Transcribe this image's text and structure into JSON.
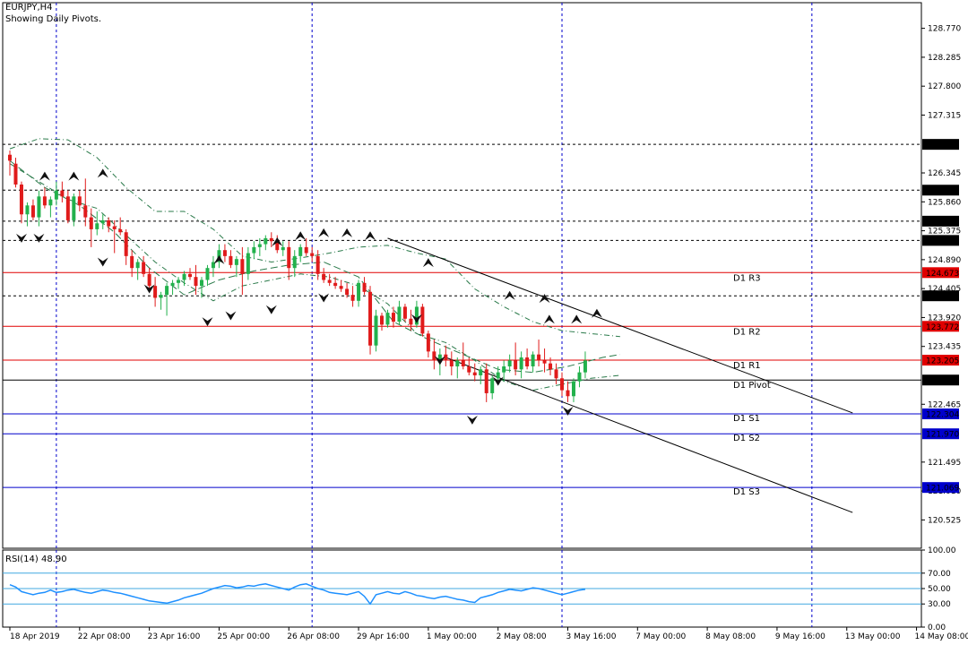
{
  "header": {
    "symbol": "EURJPY,H4",
    "subtitle": "Showing Daily Pivots."
  },
  "chart_data": {
    "type": "candlestick",
    "symbol": "EURJPY",
    "timeframe": "H4",
    "ylim": [
      120.05,
      129.2
    ],
    "grid": false,
    "y_ticks": [
      "128.770",
      "128.285",
      "127.800",
      "127.315",
      "126.345",
      "125.860",
      "125.375",
      "124.890",
      "124.405",
      "123.920",
      "123.435",
      "122.465",
      "121.495",
      "121.010",
      "120.525"
    ],
    "x_ticks": [
      "18 Apr 2019",
      "22 Apr 08:00",
      "23 Apr 16:00",
      "25 Apr 00:00",
      "26 Apr 08:00",
      "29 Apr 16:00",
      "1 May 00:00",
      "2 May 08:00",
      "3 May 16:00",
      "7 May 00:00",
      "8 May 08:00",
      "9 May 16:00",
      "13 May 00:00",
      "14 May 08:00"
    ],
    "session_separators": [
      "22 Apr 00:00",
      "29 Apr 00:00",
      "6 May 00:00",
      "13 May 00:00"
    ],
    "pivot_levels": [
      {
        "name": "D1 R3",
        "price": "124.673",
        "color": "#e00000",
        "label_bg": "#e00000"
      },
      {
        "name": "D1 R2",
        "price": "123.772",
        "color": "#e00000",
        "label_bg": "#e00000"
      },
      {
        "name": "D1 R1",
        "price": "123.205",
        "color": "#e00000",
        "label_bg": "#e00000"
      },
      {
        "name": "D1 Pivot",
        "price": "122.871",
        "color": "#000000",
        "label_bg": "#000000"
      },
      {
        "name": "D1 S1",
        "price": "122.304",
        "color": "#0000cc",
        "label_bg": "#0000cc"
      },
      {
        "name": "D1 S2",
        "price": "121.970",
        "color": "#0000cc",
        "label_bg": "#0000cc"
      },
      {
        "name": "D1 S3",
        "price": "121.069",
        "color": "#0000cc",
        "label_bg": "#0000cc"
      }
    ],
    "horizontal_levels": [
      "126.824",
      "126.056",
      "125.536",
      "125.213",
      "124.284"
    ],
    "channel_lines": [
      {
        "from": [
          65,
          125.25
        ],
        "to": [
          145,
          122.32
        ]
      },
      {
        "from": [
          75,
          123.25
        ],
        "to": [
          145,
          120.65
        ]
      }
    ],
    "candles": [
      [
        0,
        126.65,
        126.72,
        126.3,
        126.55
      ],
      [
        1,
        126.5,
        126.6,
        126.1,
        126.15
      ],
      [
        2,
        126.15,
        126.2,
        125.5,
        125.65
      ],
      [
        3,
        125.65,
        125.85,
        125.45,
        125.8
      ],
      [
        4,
        125.8,
        125.9,
        125.55,
        125.6
      ],
      [
        5,
        125.6,
        126.05,
        125.45,
        125.95
      ],
      [
        6,
        125.95,
        126.1,
        125.75,
        125.8
      ],
      [
        7,
        125.8,
        125.95,
        125.6,
        125.9
      ],
      [
        8,
        125.9,
        126.2,
        125.8,
        126.05
      ],
      [
        9,
        126.05,
        126.2,
        125.85,
        125.95
      ],
      [
        10,
        125.95,
        126.05,
        125.5,
        125.55
      ],
      [
        11,
        125.55,
        126.0,
        125.45,
        125.95
      ],
      [
        12,
        125.95,
        126.05,
        125.7,
        125.8
      ],
      [
        13,
        125.8,
        126.25,
        125.45,
        125.6
      ],
      [
        14,
        125.6,
        125.75,
        125.1,
        125.4
      ],
      [
        15,
        125.4,
        125.7,
        125.3,
        125.5
      ],
      [
        16,
        125.5,
        125.65,
        125.4,
        125.55
      ],
      [
        17,
        125.55,
        125.6,
        125.35,
        125.45
      ],
      [
        18,
        125.45,
        125.55,
        125.0,
        125.4
      ],
      [
        19,
        125.4,
        125.6,
        125.3,
        125.35
      ],
      [
        20,
        125.35,
        125.4,
        124.8,
        124.95
      ],
      [
        21,
        124.95,
        125.05,
        124.6,
        124.75
      ],
      [
        22,
        124.75,
        124.9,
        124.55,
        124.85
      ],
      [
        23,
        124.85,
        124.95,
        124.6,
        124.65
      ],
      [
        24,
        124.65,
        124.75,
        124.35,
        124.45
      ],
      [
        25,
        124.45,
        124.6,
        124.1,
        124.25
      ],
      [
        26,
        124.25,
        124.35,
        124.05,
        124.3
      ],
      [
        27,
        124.3,
        124.5,
        123.95,
        124.45
      ],
      [
        28,
        124.45,
        124.55,
        124.3,
        124.5
      ],
      [
        29,
        124.5,
        124.6,
        124.4,
        124.55
      ],
      [
        30,
        124.55,
        124.7,
        124.45,
        124.65
      ],
      [
        31,
        124.65,
        124.75,
        124.55,
        124.6
      ],
      [
        32,
        124.6,
        124.8,
        124.3,
        124.45
      ],
      [
        33,
        124.45,
        124.6,
        124.25,
        124.55
      ],
      [
        34,
        124.55,
        124.8,
        124.45,
        124.75
      ],
      [
        35,
        124.75,
        124.95,
        124.6,
        124.85
      ],
      [
        36,
        124.85,
        125.15,
        124.75,
        125.05
      ],
      [
        37,
        125.05,
        125.15,
        124.85,
        124.95
      ],
      [
        38,
        124.95,
        125.05,
        124.75,
        124.8
      ],
      [
        39,
        124.8,
        124.95,
        124.6,
        124.9
      ],
      [
        40,
        124.9,
        125.1,
        124.3,
        124.65
      ],
      [
        41,
        124.65,
        125.1,
        124.55,
        125.0
      ],
      [
        42,
        125.0,
        125.2,
        124.9,
        125.1
      ],
      [
        43,
        125.1,
        125.25,
        124.95,
        125.15
      ],
      [
        44,
        125.15,
        125.3,
        125.05,
        125.25
      ],
      [
        45,
        125.25,
        125.35,
        125.1,
        125.2
      ],
      [
        46,
        125.2,
        125.3,
        125.0,
        125.05
      ],
      [
        47,
        125.05,
        125.2,
        124.95,
        125.1
      ],
      [
        48,
        125.1,
        125.2,
        124.55,
        124.75
      ],
      [
        49,
        124.75,
        125.05,
        124.6,
        124.95
      ],
      [
        50,
        124.95,
        125.15,
        124.85,
        125.1
      ],
      [
        51,
        125.1,
        125.25,
        124.95,
        125.0
      ],
      [
        52,
        125.0,
        125.1,
        124.85,
        124.95
      ],
      [
        53,
        124.95,
        125.05,
        124.55,
        124.65
      ],
      [
        54,
        124.65,
        124.75,
        124.5,
        124.55
      ],
      [
        55,
        124.55,
        124.65,
        124.45,
        124.5
      ],
      [
        56,
        124.5,
        124.6,
        124.4,
        124.45
      ],
      [
        57,
        124.45,
        124.55,
        124.35,
        124.4
      ],
      [
        58,
        124.4,
        124.5,
        124.25,
        124.3
      ],
      [
        59,
        124.3,
        124.45,
        124.1,
        124.2
      ],
      [
        60,
        124.2,
        124.55,
        124.1,
        124.5
      ],
      [
        61,
        124.5,
        124.6,
        124.3,
        124.35
      ],
      [
        62,
        124.35,
        124.45,
        123.3,
        123.45
      ],
      [
        63,
        123.45,
        124.05,
        123.35,
        123.95
      ],
      [
        64,
        123.95,
        124.0,
        123.7,
        123.8
      ],
      [
        65,
        123.8,
        124.05,
        123.75,
        124.0
      ],
      [
        66,
        124.0,
        124.1,
        123.75,
        123.85
      ],
      [
        67,
        123.85,
        124.2,
        123.8,
        124.1
      ],
      [
        68,
        124.1,
        124.15,
        123.85,
        123.9
      ],
      [
        69,
        123.9,
        124.05,
        123.7,
        123.8
      ],
      [
        70,
        123.8,
        124.2,
        123.75,
        124.1
      ],
      [
        71,
        124.1,
        124.15,
        123.6,
        123.65
      ],
      [
        72,
        123.65,
        123.7,
        123.25,
        123.35
      ],
      [
        73,
        123.35,
        123.55,
        123.05,
        123.2
      ],
      [
        74,
        123.2,
        123.4,
        122.95,
        123.3
      ],
      [
        75,
        123.3,
        123.45,
        123.1,
        123.2
      ],
      [
        76,
        123.2,
        123.35,
        122.95,
        123.1
      ],
      [
        77,
        123.1,
        123.25,
        122.9,
        123.2
      ],
      [
        78,
        123.2,
        123.5,
        123.05,
        123.1
      ],
      [
        79,
        123.1,
        123.25,
        122.95,
        123.0
      ],
      [
        80,
        123.0,
        123.15,
        122.85,
        122.95
      ],
      [
        81,
        122.95,
        123.1,
        122.8,
        123.05
      ],
      [
        82,
        123.05,
        123.15,
        122.5,
        122.65
      ],
      [
        83,
        122.65,
        122.95,
        122.55,
        122.9
      ],
      [
        84,
        122.9,
        123.1,
        122.8,
        123.0
      ],
      [
        85,
        123.0,
        123.2,
        122.85,
        123.1
      ],
      [
        86,
        123.1,
        123.3,
        123.0,
        123.2
      ],
      [
        87,
        123.2,
        123.5,
        122.95,
        123.05
      ],
      [
        88,
        123.05,
        123.35,
        122.9,
        123.25
      ],
      [
        89,
        123.25,
        123.4,
        123.05,
        123.1
      ],
      [
        90,
        123.1,
        123.35,
        123.0,
        123.3
      ],
      [
        91,
        123.3,
        123.55,
        123.1,
        123.2
      ],
      [
        92,
        123.2,
        123.4,
        123.0,
        123.15
      ],
      [
        93,
        123.15,
        123.25,
        122.95,
        123.05
      ],
      [
        94,
        123.05,
        123.15,
        122.8,
        122.9
      ],
      [
        95,
        122.9,
        123.0,
        122.6,
        122.7
      ],
      [
        96,
        122.7,
        122.85,
        122.5,
        122.6
      ],
      [
        97,
        122.6,
        122.9,
        122.5,
        122.85
      ],
      [
        98,
        122.85,
        123.1,
        122.75,
        123.0
      ],
      [
        99,
        123.0,
        123.35,
        122.9,
        123.2
      ]
    ],
    "fractals_up": [
      [
        6,
        126.2
      ],
      [
        11,
        126.2
      ],
      [
        16,
        126.25
      ],
      [
        36,
        124.8
      ],
      [
        46,
        125.1
      ],
      [
        50,
        125.2
      ],
      [
        54,
        125.25
      ],
      [
        58,
        125.25
      ],
      [
        62,
        125.2
      ],
      [
        72,
        124.75
      ],
      [
        86,
        124.2
      ],
      [
        92,
        124.15
      ],
      [
        101,
        123.9
      ],
      [
        119,
        123.8
      ],
      [
        125,
        123.8
      ]
    ],
    "fractals_down": [
      [
        2,
        125.4
      ],
      [
        5,
        125.4
      ],
      [
        16,
        125.0
      ],
      [
        24,
        124.55
      ],
      [
        34,
        124.0
      ],
      [
        38,
        124.1
      ],
      [
        45,
        124.2
      ],
      [
        54,
        124.4
      ],
      [
        70,
        124.05
      ],
      [
        74,
        123.35
      ],
      [
        84,
        123.0
      ],
      [
        96,
        122.5
      ],
      [
        102,
        122.35
      ]
    ],
    "envelope_upper": [
      [
        0,
        126.75
      ],
      [
        5,
        126.92
      ],
      [
        10,
        126.9
      ],
      [
        15,
        126.6
      ],
      [
        20,
        126.1
      ],
      [
        25,
        125.7
      ],
      [
        30,
        125.7
      ],
      [
        35,
        125.4
      ],
      [
        40,
        124.95
      ],
      [
        45,
        124.85
      ],
      [
        50,
        124.92
      ],
      [
        55,
        125.0
      ],
      [
        60,
        125.1
      ],
      [
        65,
        125.13
      ],
      [
        70,
        125.0
      ],
      [
        75,
        124.9
      ],
      [
        80,
        124.4
      ],
      [
        85,
        124.1
      ],
      [
        90,
        123.85
      ],
      [
        95,
        123.7
      ],
      [
        100,
        123.65
      ],
      [
        105,
        123.6
      ]
    ],
    "envelope_lower": [
      [
        0,
        126.5
      ],
      [
        5,
        126.2
      ],
      [
        10,
        125.9
      ],
      [
        15,
        125.75
      ],
      [
        20,
        125.3
      ],
      [
        25,
        124.85
      ],
      [
        30,
        124.5
      ],
      [
        35,
        124.2
      ],
      [
        40,
        124.45
      ],
      [
        45,
        124.55
      ],
      [
        50,
        124.65
      ],
      [
        55,
        124.6
      ],
      [
        60,
        124.45
      ],
      [
        65,
        124.15
      ],
      [
        70,
        123.65
      ],
      [
        75,
        123.5
      ],
      [
        80,
        123.2
      ],
      [
        85,
        122.85
      ],
      [
        90,
        122.7
      ],
      [
        95,
        122.8
      ],
      [
        100,
        122.9
      ],
      [
        105,
        122.95
      ]
    ],
    "envelope_mid": [
      [
        0,
        126.55
      ],
      [
        6,
        126.1
      ],
      [
        12,
        125.8
      ],
      [
        18,
        125.35
      ],
      [
        24,
        124.75
      ],
      [
        30,
        124.3
      ],
      [
        36,
        124.55
      ],
      [
        42,
        124.7
      ],
      [
        48,
        124.8
      ],
      [
        54,
        124.85
      ],
      [
        60,
        124.6
      ],
      [
        66,
        123.85
      ],
      [
        72,
        123.55
      ],
      [
        78,
        123.3
      ],
      [
        84,
        123.05
      ],
      [
        90,
        123.0
      ],
      [
        96,
        123.1
      ],
      [
        102,
        123.25
      ],
      [
        105,
        123.3
      ]
    ],
    "rsi": {
      "label": "RSI(14) 48.90",
      "levels": [
        70,
        50,
        30
      ],
      "ticks": [
        "100.00",
        "70.00",
        "50.00",
        "30.00",
        "0.00"
      ],
      "values": [
        55,
        52,
        46,
        44,
        42,
        44,
        45,
        48,
        45,
        46,
        48,
        49,
        47,
        45,
        44,
        46,
        48,
        47,
        45,
        44,
        42,
        40,
        38,
        36,
        34,
        33,
        32,
        31,
        33,
        35,
        38,
        40,
        42,
        44,
        47,
        50,
        52,
        54,
        53,
        51,
        52,
        54,
        53,
        55,
        56,
        54,
        52,
        50,
        48,
        52,
        55,
        56,
        53,
        50,
        48,
        45,
        44,
        43,
        42,
        44,
        46,
        40,
        30,
        42,
        44,
        46,
        44,
        43,
        46,
        44,
        41,
        40,
        38,
        37,
        39,
        40,
        38,
        36,
        35,
        33,
        32,
        38,
        40,
        42,
        45,
        47,
        49,
        48,
        47,
        49,
        51,
        50,
        48,
        46,
        44,
        42,
        44,
        46,
        48,
        49
      ]
    }
  }
}
